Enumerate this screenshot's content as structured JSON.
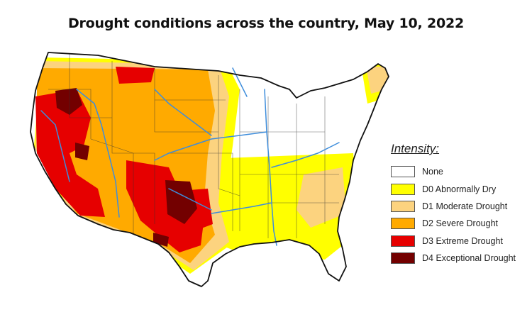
{
  "title": "Drought conditions across the country, May 10, 2022",
  "legend": {
    "title": "Intensity:",
    "items": [
      {
        "label": "None",
        "color": "#ffffff"
      },
      {
        "label": "D0 Abnormally Dry",
        "color": "#ffff00"
      },
      {
        "label": "D1 Moderate Drought",
        "color": "#fcd37f"
      },
      {
        "label": "D2 Severe Drought",
        "color": "#ffaa00"
      },
      {
        "label": "D3 Extreme Drought",
        "color": "#e60000"
      },
      {
        "label": "D4 Exceptional Drought",
        "color": "#730000"
      }
    ]
  },
  "colors": {
    "outline": "#111111",
    "rivers": "#3e8ddb",
    "state_lines": "#333333"
  }
}
